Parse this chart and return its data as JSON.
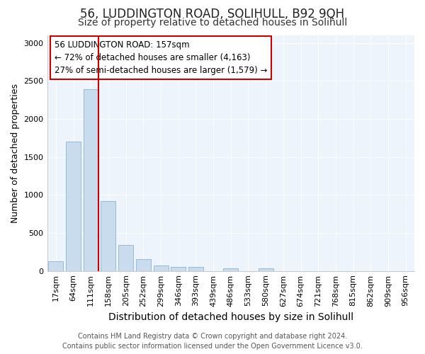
{
  "title": "56, LUDDINGTON ROAD, SOLIHULL, B92 9QH",
  "subtitle": "Size of property relative to detached houses in Solihull",
  "xlabel": "Distribution of detached houses by size in Solihull",
  "ylabel": "Number of detached properties",
  "categories": [
    "17sqm",
    "64sqm",
    "111sqm",
    "158sqm",
    "205sqm",
    "252sqm",
    "299sqm",
    "346sqm",
    "393sqm",
    "439sqm",
    "486sqm",
    "533sqm",
    "580sqm",
    "627sqm",
    "674sqm",
    "721sqm",
    "768sqm",
    "815sqm",
    "862sqm",
    "909sqm",
    "956sqm"
  ],
  "values": [
    130,
    1700,
    2390,
    920,
    345,
    160,
    75,
    55,
    55,
    0,
    35,
    0,
    30,
    0,
    0,
    0,
    0,
    0,
    0,
    0,
    0
  ],
  "bar_color": "#c8dcee",
  "bar_edge_color": "#8ab4d4",
  "vline_color": "#cc0000",
  "annotation_box_text": "56 LUDDINGTON ROAD: 157sqm\n← 72% of detached houses are smaller (4,163)\n27% of semi-detached houses are larger (1,579) →",
  "box_edge_color": "#cc0000",
  "ylim": [
    0,
    3100
  ],
  "yticks": [
    0,
    500,
    1000,
    1500,
    2000,
    2500,
    3000
  ],
  "footer_line1": "Contains HM Land Registry data © Crown copyright and database right 2024.",
  "footer_line2": "Contains public sector information licensed under the Open Government Licence v3.0.",
  "bg_color": "#ffffff",
  "plot_bg_color": "#eef4fb",
  "grid_color": "#ffffff",
  "title_fontsize": 12,
  "subtitle_fontsize": 10,
  "xlabel_fontsize": 10,
  "ylabel_fontsize": 9,
  "tick_fontsize": 8,
  "footer_fontsize": 7,
  "annot_fontsize": 8.5
}
